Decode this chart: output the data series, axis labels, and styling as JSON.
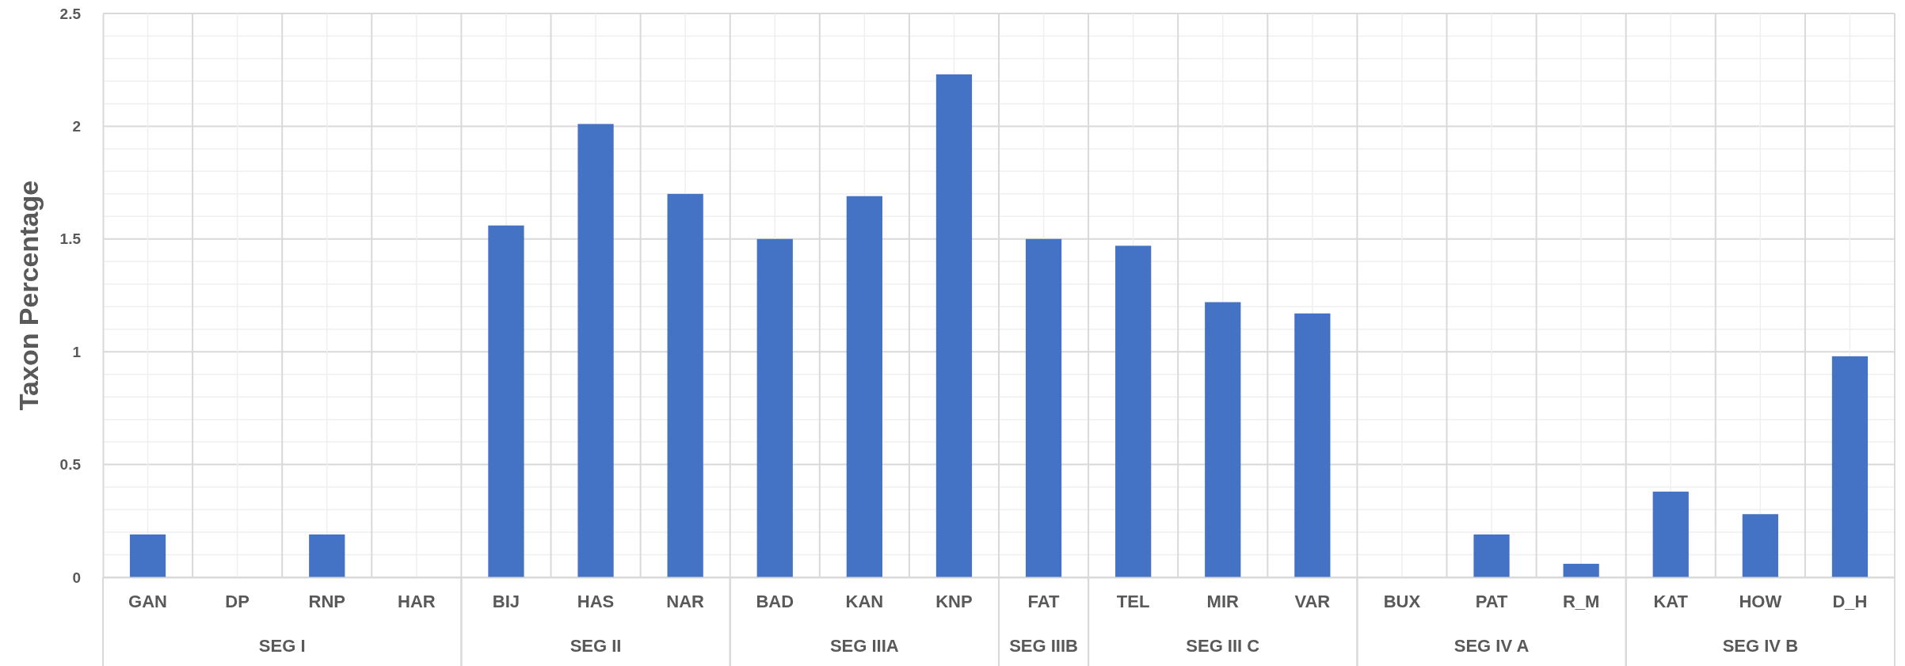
{
  "chart_data": {
    "type": "bar",
    "ylabel": "Taxon Percentage",
    "categories": [
      "GAN",
      "DP",
      "RNP",
      "HAR",
      "BIJ",
      "HAS",
      "NAR",
      "BAD",
      "KAN",
      "KNP",
      "FAT",
      "TEL",
      "MIR",
      "VAR",
      "BUX",
      "PAT",
      "R_M",
      "KAT",
      "HOW",
      "D_H"
    ],
    "values": [
      0.19,
      0,
      0.19,
      0,
      1.56,
      2.01,
      1.7,
      1.5,
      1.69,
      2.23,
      1.5,
      1.47,
      1.22,
      1.17,
      0,
      0.19,
      0.06,
      0.38,
      0.28,
      0.98
    ],
    "color": "#4472c4",
    "ylim": [
      0,
      2.5
    ],
    "yticks": [
      {
        "value": 0,
        "label": "0"
      },
      {
        "value": 0.5,
        "label": "0.5"
      },
      {
        "value": 1,
        "label": "1"
      },
      {
        "value": 1.5,
        "label": "1.5"
      },
      {
        "value": 2,
        "label": "2"
      },
      {
        "value": 2.5,
        "label": "2.5"
      }
    ],
    "grid": true,
    "annotations": [
      "SEG I",
      "SEG II",
      "SEG IIIA",
      "SEG IIIB",
      "SEG III C",
      "SEG IV A",
      "SEG IV B"
    ]
  }
}
